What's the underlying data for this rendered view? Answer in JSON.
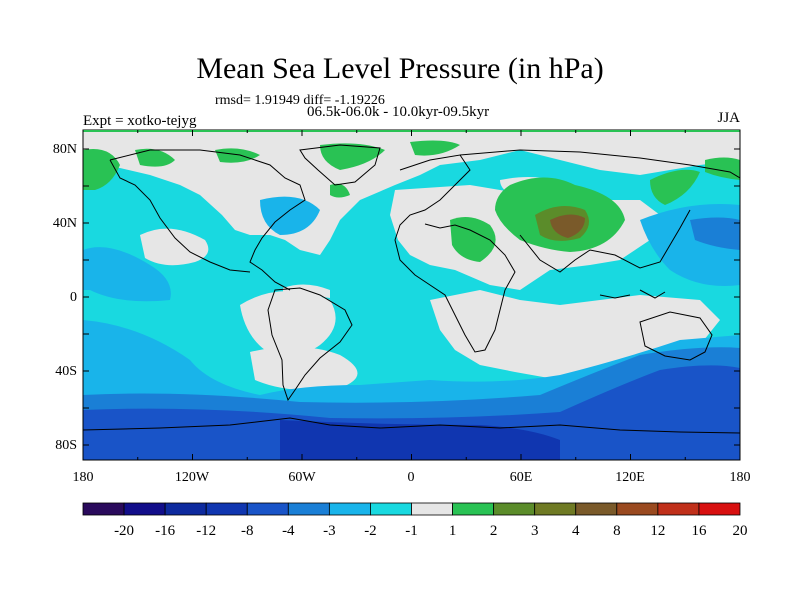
{
  "title": "Mean Sea Level Pressure (in hPa)",
  "stats": "rmsd= 1.91949 diff= -1.19226",
  "period": "06.5k-06.0k - 10.0kyr-09.5kyr",
  "experiment": "Expt = xotko-tejyg",
  "season": "JJA",
  "map": {
    "lat_ticks": [
      "80N",
      "40N",
      "0",
      "40S",
      "80S"
    ],
    "lon_ticks": [
      "180",
      "120W",
      "60W",
      "0",
      "60E",
      "120E",
      "180"
    ],
    "colors": {
      "land_neutral": "#e6e6e6",
      "light_cyan": "#19d9e0",
      "sky": "#19b4ea",
      "mid_blue": "#1a7fd6",
      "blue": "#1954c8",
      "deep_blue": "#1036b0",
      "green": "#29c254",
      "olive": "#5b8c2a",
      "brown": "#7a5a2a",
      "coast": "#000000"
    }
  },
  "colorbar": {
    "colors": [
      "#2a0a5c",
      "#120e8a",
      "#0e2a9e",
      "#1036b0",
      "#1954c8",
      "#1a7fd6",
      "#19b4ea",
      "#19d9e0",
      "#e6e6e6",
      "#29c254",
      "#5b8c2a",
      "#6f7a24",
      "#7a5a2a",
      "#9a4a20",
      "#c0301a",
      "#d81010"
    ],
    "labels": [
      "-20",
      "-16",
      "-12",
      "-8",
      "-4",
      "-3",
      "-2",
      "-1",
      "1",
      "2",
      "3",
      "4",
      "8",
      "12",
      "16",
      "20"
    ]
  }
}
